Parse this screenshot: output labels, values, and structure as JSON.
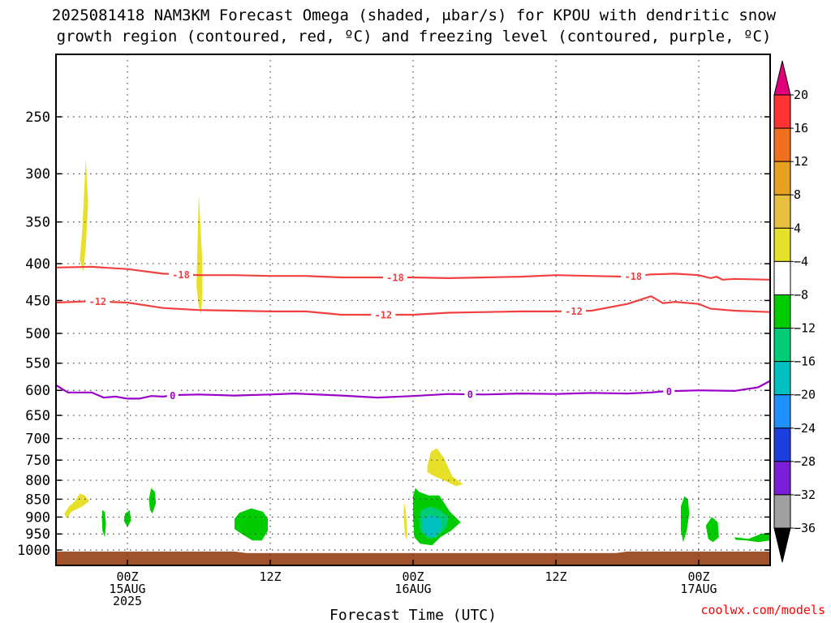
{
  "chart_data": {
    "type": "heatmap",
    "title_lines": [
      "2025081418 NAM3KM Forecast Omega (shaded, μbar/s) for KPOU with dendritic snow",
      "growth region (contoured, red, ºC) and freezing level (contoured, purple, ºC)"
    ],
    "xlabel": "Forecast Time (UTC)",
    "credit": "coolwx.com/models",
    "y_axis": {
      "scale": "log-pressure",
      "inverted": true,
      "range": [
        1030,
        200
      ],
      "ticks": [
        1000,
        950,
        900,
        850,
        800,
        750,
        700,
        650,
        600,
        550,
        500,
        450,
        400,
        350,
        300,
        250
      ]
    },
    "x_axis": {
      "units": "hours since 2025-08-14 18Z",
      "range": [
        0,
        60
      ],
      "ticks": [
        {
          "hour": 6,
          "lines": [
            "00Z",
            "15AUG",
            "2025"
          ]
        },
        {
          "hour": 18,
          "lines": [
            "12Z"
          ]
        },
        {
          "hour": 30,
          "lines": [
            "00Z",
            "16AUG"
          ]
        },
        {
          "hour": 42,
          "lines": [
            "12Z"
          ]
        },
        {
          "hour": 54,
          "lines": [
            "00Z",
            "17AUG"
          ]
        }
      ]
    },
    "grid": true,
    "colorbar": {
      "labels": [
        "20",
        "16",
        "12",
        "8",
        "4",
        "−4",
        "−8",
        "−12",
        "−16",
        "−20",
        "−24",
        "−28",
        "−32",
        "−36"
      ],
      "colors_top_to_bottom": [
        "#ff3333",
        "#f07020",
        "#e8a020",
        "#e8c040",
        "#e6e02a",
        "#ffffff",
        "#00cc00",
        "#00cc77",
        "#00c0c0",
        "#1e90ff",
        "#1e3fe0",
        "#7a1ed8",
        "#9a00c8",
        "#a0a0a0"
      ],
      "top_arrow_color": "#e0007a",
      "bottom_arrow_color": "#000000"
    },
    "series": [
      {
        "name": "-18",
        "color": "#f04040",
        "points": [
          [
            0,
            405
          ],
          [
            3,
            404
          ],
          [
            6,
            407
          ],
          [
            9,
            413
          ],
          [
            12,
            415
          ],
          [
            15,
            415
          ],
          [
            18,
            416
          ],
          [
            21,
            416
          ],
          [
            24,
            418
          ],
          [
            27,
            418
          ],
          [
            30,
            418
          ],
          [
            33,
            419
          ],
          [
            36,
            418
          ],
          [
            39,
            417
          ],
          [
            42,
            415
          ],
          [
            45,
            416
          ],
          [
            48,
            417
          ],
          [
            50,
            414
          ],
          [
            52,
            413
          ],
          [
            54,
            415
          ],
          [
            55,
            419
          ],
          [
            55.5,
            417
          ],
          [
            56,
            421
          ],
          [
            57,
            420
          ],
          [
            60,
            421
          ]
        ],
        "labels_at_hours": [
          10.5,
          28.5,
          48.5
        ]
      },
      {
        "name": "-12",
        "color": "#f04040",
        "points": [
          [
            0,
            453
          ],
          [
            3,
            451
          ],
          [
            6,
            453
          ],
          [
            9,
            461
          ],
          [
            12,
            464
          ],
          [
            15,
            465
          ],
          [
            18,
            466
          ],
          [
            21,
            466
          ],
          [
            24,
            471
          ],
          [
            27,
            471
          ],
          [
            30,
            471
          ],
          [
            33,
            468
          ],
          [
            36,
            467
          ],
          [
            39,
            466
          ],
          [
            42,
            466
          ],
          [
            45,
            465
          ],
          [
            48,
            455
          ],
          [
            50,
            444
          ],
          [
            51,
            454
          ],
          [
            52,
            452
          ],
          [
            54,
            455
          ],
          [
            55,
            462
          ],
          [
            57,
            465
          ],
          [
            60,
            467
          ]
        ],
        "labels_at_hours": [
          3.5,
          27.5,
          43.5
        ]
      },
      {
        "name": "0",
        "color": "#9a00c8",
        "points": [
          [
            0,
            590
          ],
          [
            1,
            604
          ],
          [
            3,
            604
          ],
          [
            4,
            614
          ],
          [
            5,
            612
          ],
          [
            6,
            616
          ],
          [
            7,
            616
          ],
          [
            8,
            611
          ],
          [
            9,
            612
          ],
          [
            10,
            609
          ],
          [
            12,
            608
          ],
          [
            15,
            610
          ],
          [
            18,
            608
          ],
          [
            20,
            606
          ],
          [
            24,
            610
          ],
          [
            27,
            614
          ],
          [
            30,
            611
          ],
          [
            33,
            607
          ],
          [
            36,
            608
          ],
          [
            39,
            606
          ],
          [
            42,
            607
          ],
          [
            45,
            605
          ],
          [
            48,
            606
          ],
          [
            50,
            604
          ],
          [
            51,
            602
          ],
          [
            54,
            600
          ],
          [
            57,
            601
          ],
          [
            59,
            594
          ],
          [
            60,
            582
          ]
        ],
        "labels_at_hours": [
          9.8,
          34.8,
          51.5
        ]
      }
    ],
    "shaded_regions": [
      {
        "range": "4 to 8",
        "color": "#e6e02a",
        "points": [
          [
            2,
            395
          ],
          [
            2.2,
            360
          ],
          [
            2.4,
            310
          ],
          [
            2.5,
            285
          ],
          [
            2.7,
            330
          ],
          [
            2.5,
            380
          ],
          [
            2.3,
            410
          ],
          [
            2.1,
            400
          ]
        ]
      },
      {
        "range": "4 to 8",
        "color": "#e6e02a",
        "points": [
          [
            11.8,
            430
          ],
          [
            11.9,
            370
          ],
          [
            12.0,
            320
          ],
          [
            12.1,
            345
          ],
          [
            12.3,
            400
          ],
          [
            12.3,
            440
          ],
          [
            12.2,
            470
          ],
          [
            12.0,
            460
          ]
        ]
      },
      {
        "range": "4 to 8",
        "color": "#e6e02a",
        "points": [
          [
            0.7,
            890
          ],
          [
            1.1,
            870
          ],
          [
            1.6,
            855
          ],
          [
            2.0,
            835
          ],
          [
            2.4,
            840
          ],
          [
            2.8,
            855
          ],
          [
            2.2,
            870
          ],
          [
            1.3,
            885
          ],
          [
            0.9,
            905
          ]
        ]
      },
      {
        "range": "4 to 8",
        "color": "#e6e02a",
        "points": [
          [
            31.2,
            765
          ],
          [
            31.5,
            730
          ],
          [
            32.0,
            722
          ],
          [
            32.6,
            745
          ],
          [
            33.3,
            790
          ],
          [
            34.2,
            810
          ],
          [
            33.6,
            815
          ],
          [
            32.6,
            800
          ],
          [
            31.8,
            790
          ],
          [
            31.2,
            780
          ]
        ]
      },
      {
        "range": "4 to 8",
        "color": "#e6e02a",
        "points": [
          [
            29.2,
            880
          ],
          [
            29.3,
            860
          ],
          [
            29.4,
            890
          ],
          [
            29.5,
            940
          ],
          [
            29.5,
            970
          ],
          [
            29.3,
            950
          ]
        ]
      },
      {
        "range": "-4 to -8",
        "color": "#00cc00",
        "points": [
          [
            3.9,
            880
          ],
          [
            4.1,
            885
          ],
          [
            4.2,
            920
          ],
          [
            4.1,
            960
          ],
          [
            3.9,
            940
          ],
          [
            3.85,
            900
          ]
        ]
      },
      {
        "range": "-4 to -8",
        "color": "#00cc00",
        "points": [
          [
            5.8,
            890
          ],
          [
            6.2,
            880
          ],
          [
            6.3,
            910
          ],
          [
            6.0,
            930
          ],
          [
            5.7,
            910
          ]
        ]
      },
      {
        "range": "-4 to -8",
        "color": "#00cc00",
        "points": [
          [
            7.8,
            850
          ],
          [
            8.0,
            820
          ],
          [
            8.3,
            830
          ],
          [
            8.4,
            860
          ],
          [
            8.1,
            890
          ],
          [
            7.9,
            880
          ]
        ]
      },
      {
        "range": "-4 to -8",
        "color": "#00cc00",
        "points": [
          [
            15.0,
            905
          ],
          [
            15.4,
            888
          ],
          [
            16.4,
            875
          ],
          [
            17.4,
            885
          ],
          [
            17.8,
            905
          ],
          [
            17.8,
            940
          ],
          [
            17.3,
            970
          ],
          [
            16.5,
            970
          ],
          [
            15.6,
            950
          ],
          [
            15.0,
            935
          ]
        ]
      },
      {
        "range": "-4 to -8",
        "color": "#00cc00",
        "points": [
          [
            30.0,
            840
          ],
          [
            30.2,
            820
          ],
          [
            30.5,
            830
          ],
          [
            31.3,
            840
          ],
          [
            32.2,
            840
          ],
          [
            33.1,
            885
          ],
          [
            34.0,
            915
          ],
          [
            33.2,
            940
          ],
          [
            32.3,
            960
          ],
          [
            31.6,
            985
          ],
          [
            30.6,
            980
          ],
          [
            30.1,
            960
          ],
          [
            30.0,
            900
          ]
        ]
      },
      {
        "range": "-8 to -12",
        "color": "#00cc77",
        "points": [
          [
            30.7,
            880
          ],
          [
            31.5,
            870
          ],
          [
            32.2,
            880
          ],
          [
            33.0,
            900
          ],
          [
            32.8,
            930
          ],
          [
            32.0,
            960
          ],
          [
            31.3,
            965
          ],
          [
            30.6,
            940
          ],
          [
            30.5,
            905
          ]
        ]
      },
      {
        "range": "-12 to -16",
        "color": "#00c0c0",
        "points": [
          [
            30.9,
            905
          ],
          [
            31.5,
            895
          ],
          [
            32.3,
            905
          ],
          [
            32.4,
            930
          ],
          [
            31.8,
            960
          ],
          [
            31.1,
            955
          ],
          [
            30.8,
            930
          ]
        ]
      },
      {
        "range": "-4 to -8",
        "color": "#00cc00",
        "points": [
          [
            52.5,
            870
          ],
          [
            52.8,
            842
          ],
          [
            53.1,
            850
          ],
          [
            53.2,
            890
          ],
          [
            53.0,
            940
          ],
          [
            52.7,
            975
          ],
          [
            52.5,
            940
          ]
        ]
      },
      {
        "range": "-4 to -8",
        "color": "#00cc00",
        "points": [
          [
            54.6,
            925
          ],
          [
            55.1,
            900
          ],
          [
            55.6,
            915
          ],
          [
            55.7,
            960
          ],
          [
            55.2,
            975
          ],
          [
            54.8,
            965
          ]
        ]
      },
      {
        "range": "-4 to -8",
        "color": "#00cc00",
        "points": [
          [
            57.0,
            960
          ],
          [
            58.2,
            965
          ],
          [
            59.2,
            950
          ],
          [
            60.0,
            945
          ],
          [
            60.0,
            970
          ],
          [
            59.0,
            975
          ],
          [
            58.0,
            970
          ],
          [
            57.1,
            968
          ]
        ]
      }
    ],
    "surface": {
      "color": "#a0522d",
      "points": [
        [
          0,
          1005
        ],
        [
          15,
          1005
        ],
        [
          16,
          1010
        ],
        [
          47,
          1010
        ],
        [
          48,
          1005
        ],
        [
          60,
          1005
        ]
      ]
    }
  }
}
